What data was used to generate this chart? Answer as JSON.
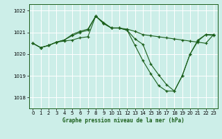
{
  "xlabel": "Graphe pression niveau de la mer (hPa)",
  "bg_color": "#cceee8",
  "grid_color": "#ffffff",
  "line_color": "#1a5e1a",
  "ylim": [
    1017.5,
    1022.3
  ],
  "xlim": [
    -0.5,
    23.5
  ],
  "yticks": [
    1018,
    1019,
    1020,
    1021,
    1022
  ],
  "xticks": [
    0,
    1,
    2,
    3,
    4,
    5,
    6,
    7,
    8,
    9,
    10,
    11,
    12,
    13,
    14,
    15,
    16,
    17,
    18,
    19,
    20,
    21,
    22,
    23
  ],
  "line1_y": [
    1020.5,
    1020.3,
    1020.4,
    1020.55,
    1020.6,
    1020.65,
    1020.75,
    1020.8,
    1021.75,
    1021.45,
    1021.2,
    1021.2,
    1021.15,
    1021.05,
    1020.9,
    1020.85,
    1020.8,
    1020.75,
    1020.7,
    1020.65,
    1020.6,
    1020.55,
    1020.5,
    1020.9
  ],
  "line2_y": [
    1020.5,
    1020.3,
    1020.4,
    1020.55,
    1020.65,
    1020.9,
    1021.05,
    1021.15,
    1021.75,
    1021.45,
    1021.2,
    1021.2,
    1021.1,
    1020.7,
    1020.45,
    1019.55,
    1019.05,
    1018.6,
    1018.3,
    1019.0,
    1020.0,
    1020.65,
    1020.9,
    1020.9
  ],
  "line3_y": [
    1020.5,
    1020.3,
    1020.4,
    1020.55,
    1020.65,
    1020.85,
    1021.0,
    1021.1,
    1021.75,
    1021.4,
    1021.2,
    1021.2,
    1021.1,
    1020.4,
    1019.7,
    1019.1,
    1018.55,
    1018.3,
    1018.3,
    1019.0,
    1020.0,
    1020.6,
    1020.9,
    1020.85
  ]
}
